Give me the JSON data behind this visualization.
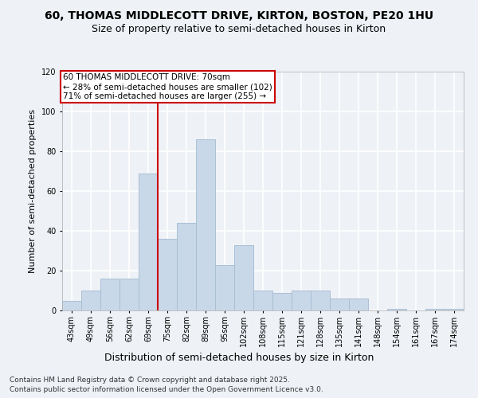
{
  "title1": "60, THOMAS MIDDLECOTT DRIVE, KIRTON, BOSTON, PE20 1HU",
  "title2": "Size of property relative to semi-detached houses in Kirton",
  "xlabel": "Distribution of semi-detached houses by size in Kirton",
  "ylabel": "Number of semi-detached properties",
  "categories": [
    "43sqm",
    "49sqm",
    "56sqm",
    "62sqm",
    "69sqm",
    "75sqm",
    "82sqm",
    "89sqm",
    "95sqm",
    "102sqm",
    "108sqm",
    "115sqm",
    "121sqm",
    "128sqm",
    "135sqm",
    "141sqm",
    "148sqm",
    "154sqm",
    "161sqm",
    "167sqm",
    "174sqm"
  ],
  "values": [
    5,
    10,
    16,
    16,
    69,
    36,
    44,
    86,
    23,
    33,
    10,
    9,
    10,
    10,
    6,
    6,
    0,
    1,
    0,
    1,
    1
  ],
  "bar_color": "#c8d8e8",
  "bar_edge_color": "#aabfd4",
  "annotation_text": "60 THOMAS MIDDLECOTT DRIVE: 70sqm\n← 28% of semi-detached houses are smaller (102)\n71% of semi-detached houses are larger (255) →",
  "annotation_box_color": "#ffffff",
  "annotation_box_edge": "#cc0000",
  "vline_color": "#cc0000",
  "vline_x_index": 4,
  "ylim": [
    0,
    120
  ],
  "yticks": [
    0,
    20,
    40,
    60,
    80,
    100,
    120
  ],
  "footnote1": "Contains HM Land Registry data © Crown copyright and database right 2025.",
  "footnote2": "Contains public sector information licensed under the Open Government Licence v3.0.",
  "bg_color": "#eef2f7",
  "plot_bg_color": "#eef2f7",
  "grid_color": "#ffffff",
  "title1_fontsize": 10,
  "title2_fontsize": 9,
  "xlabel_fontsize": 9,
  "ylabel_fontsize": 8,
  "tick_fontsize": 7,
  "annotation_fontsize": 7.5,
  "footnote_fontsize": 6.5
}
